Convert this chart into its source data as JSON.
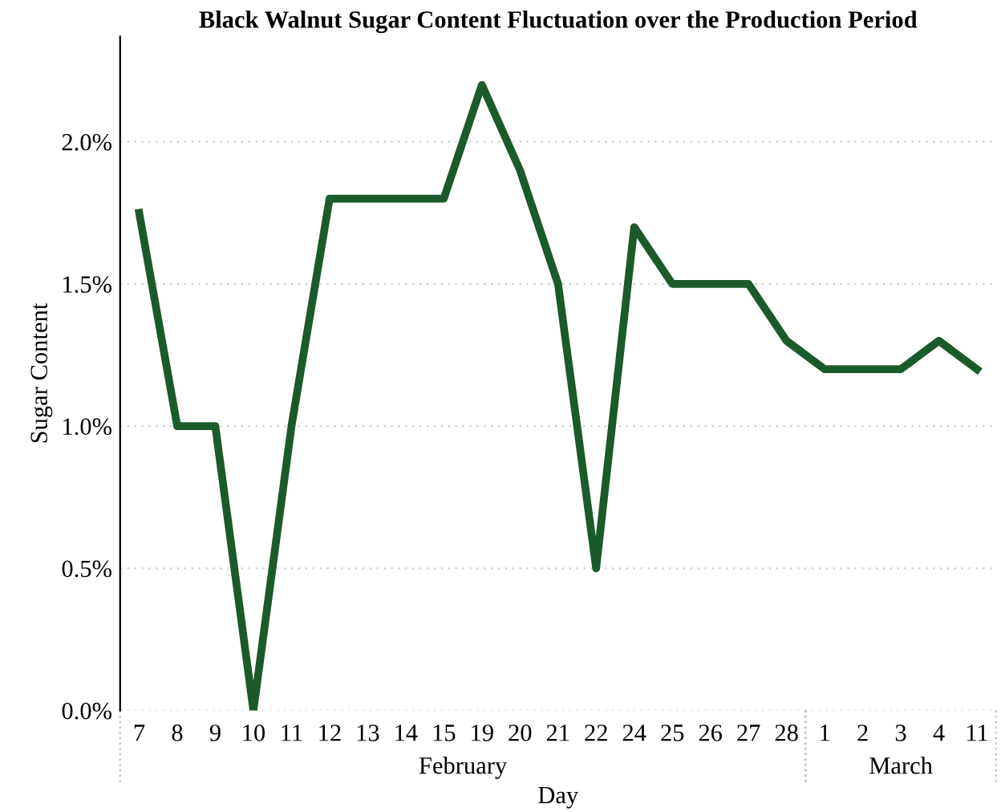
{
  "chart_data": {
    "type": "line",
    "title": "Black Walnut Sugar Content Fluctuation over the Production Period",
    "xlabel": "Day",
    "ylabel": "Sugar Content",
    "categories": [
      "7",
      "8",
      "9",
      "10",
      "11",
      "12",
      "13",
      "14",
      "15",
      "19",
      "20",
      "21",
      "22",
      "24",
      "25",
      "26",
      "27",
      "28",
      "1",
      "2",
      "3",
      "4",
      "11"
    ],
    "series": [
      {
        "color": "#1b5a2b",
        "values": [
          1.75,
          1.0,
          1.0,
          0.0,
          1.0,
          1.8,
          1.8,
          1.8,
          1.8,
          2.2,
          1.9,
          1.5,
          0.5,
          1.7,
          1.5,
          1.5,
          1.5,
          1.3,
          1.2,
          1.2,
          1.2,
          1.3,
          1.2
        ]
      }
    ],
    "ylim": [
      0,
      2.37
    ],
    "yticks": [
      {
        "value": 0,
        "label": "0.0%"
      },
      {
        "value": 0.5,
        "label": "0.5%"
      },
      {
        "value": 1.0,
        "label": "1.0%"
      },
      {
        "value": 1.5,
        "label": "1.5%"
      },
      {
        "value": 2.0,
        "label": "2.0%"
      }
    ],
    "annotations": [
      "February",
      "March"
    ],
    "grid": "y",
    "marker": "none",
    "line_style": "solid"
  }
}
